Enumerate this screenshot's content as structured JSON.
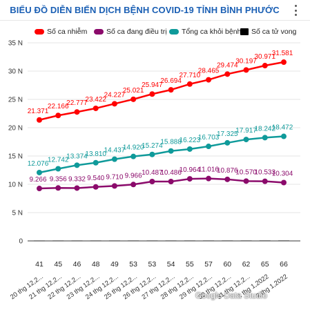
{
  "header": {
    "title": "BIỂU ĐỒ DIỄN BIẾN DỊCH BỆNH COVID-19 TỈNH BÌNH PHƯỚC",
    "menu_icon": "more-vert-icon"
  },
  "watermark": "Google Data Studio",
  "colors": {
    "red": "#ff0000",
    "purple": "#8b0a6b",
    "teal": "#0f9a9a",
    "black": "#000000",
    "title": "#1a5fb4"
  },
  "chart_data": {
    "type": "line",
    "title": "BIỂU ĐỒ DIỄN BIẾN DỊCH BỆNH COVID-19 TỈNH BÌNH PHƯỚC",
    "x": [
      "20 thg 12,2...",
      "21 thg 12,2...",
      "22 thg 12,2...",
      "23 thg 12,2...",
      "24 thg 12,2...",
      "25 thg 12,2...",
      "26 thg 12,2...",
      "27 thg 12,2...",
      "28 thg 12,2...",
      "29 thg 12,2...",
      "30 thg 12,2...",
      "31 thg 12,2...",
      "1 thg 1,2022",
      "2 thg 1,2022"
    ],
    "bar_values": [
      "41",
      "45",
      "46",
      "48",
      "49",
      "53",
      "53",
      "54",
      "55",
      "57",
      "60",
      "62",
      "65",
      "66"
    ],
    "ylim": [
      0,
      35000
    ],
    "yticks": [
      0,
      5000,
      10000,
      15000,
      20000,
      25000,
      30000,
      35000
    ],
    "ytick_labels": [
      "0",
      "5 N",
      "10 N",
      "15 N",
      "20 N",
      "25 N",
      "30 N",
      "35 N"
    ],
    "grid": true,
    "legend_position": "top",
    "series": [
      {
        "name": "Số ca nhiễm",
        "color": "#ff0000",
        "key": "red",
        "values": [
          21371,
          22166,
          22777,
          23422,
          24227,
          25021,
          25947,
          26694,
          27710,
          28465,
          29474,
          30197,
          30971,
          31581
        ],
        "labels": [
          "21.371",
          "22.166",
          "22.777",
          "23.422",
          "24.227",
          "25.021",
          "25.947",
          "26.694",
          "27.710",
          "28.465",
          "29.474",
          "30.197",
          "30.971",
          "31.581"
        ]
      },
      {
        "name": "Số ca đang điều trị",
        "color": "#8b0a6b",
        "key": "purple",
        "values": [
          9266,
          9356,
          9332,
          9540,
          9710,
          9966,
          10487,
          10486,
          10964,
          11016,
          10876,
          10570,
          10533,
          10304
        ],
        "labels": [
          "9.266",
          "9.356",
          "9.332",
          "9.540",
          "9.710",
          "9.966",
          "10.487",
          "10.486",
          "10.964",
          "11.016",
          "10.876",
          "10.570",
          "10.533",
          "10.304"
        ]
      },
      {
        "name": "Tổng ca khỏi bệnh",
        "color": "#0f9a9a",
        "key": "teal",
        "values": [
          12076,
          12742,
          13374,
          13810,
          14437,
          14920,
          15274,
          15888,
          16223,
          16703,
          17325,
          17917,
          18242,
          18472
        ],
        "labels": [
          "12.076",
          "12.742",
          "13.374",
          "13.810",
          "14.437",
          "14.920",
          "15.274",
          "15.888",
          "16.223",
          "16.703",
          "17.325",
          "17.917",
          "18.242",
          "18.472"
        ]
      },
      {
        "name": "Số ca tử vong",
        "color": "#000000",
        "key": "black",
        "type": "bar",
        "values": [
          41,
          45,
          46,
          48,
          49,
          53,
          53,
          54,
          55,
          57,
          60,
          62,
          65,
          66
        ]
      }
    ]
  }
}
